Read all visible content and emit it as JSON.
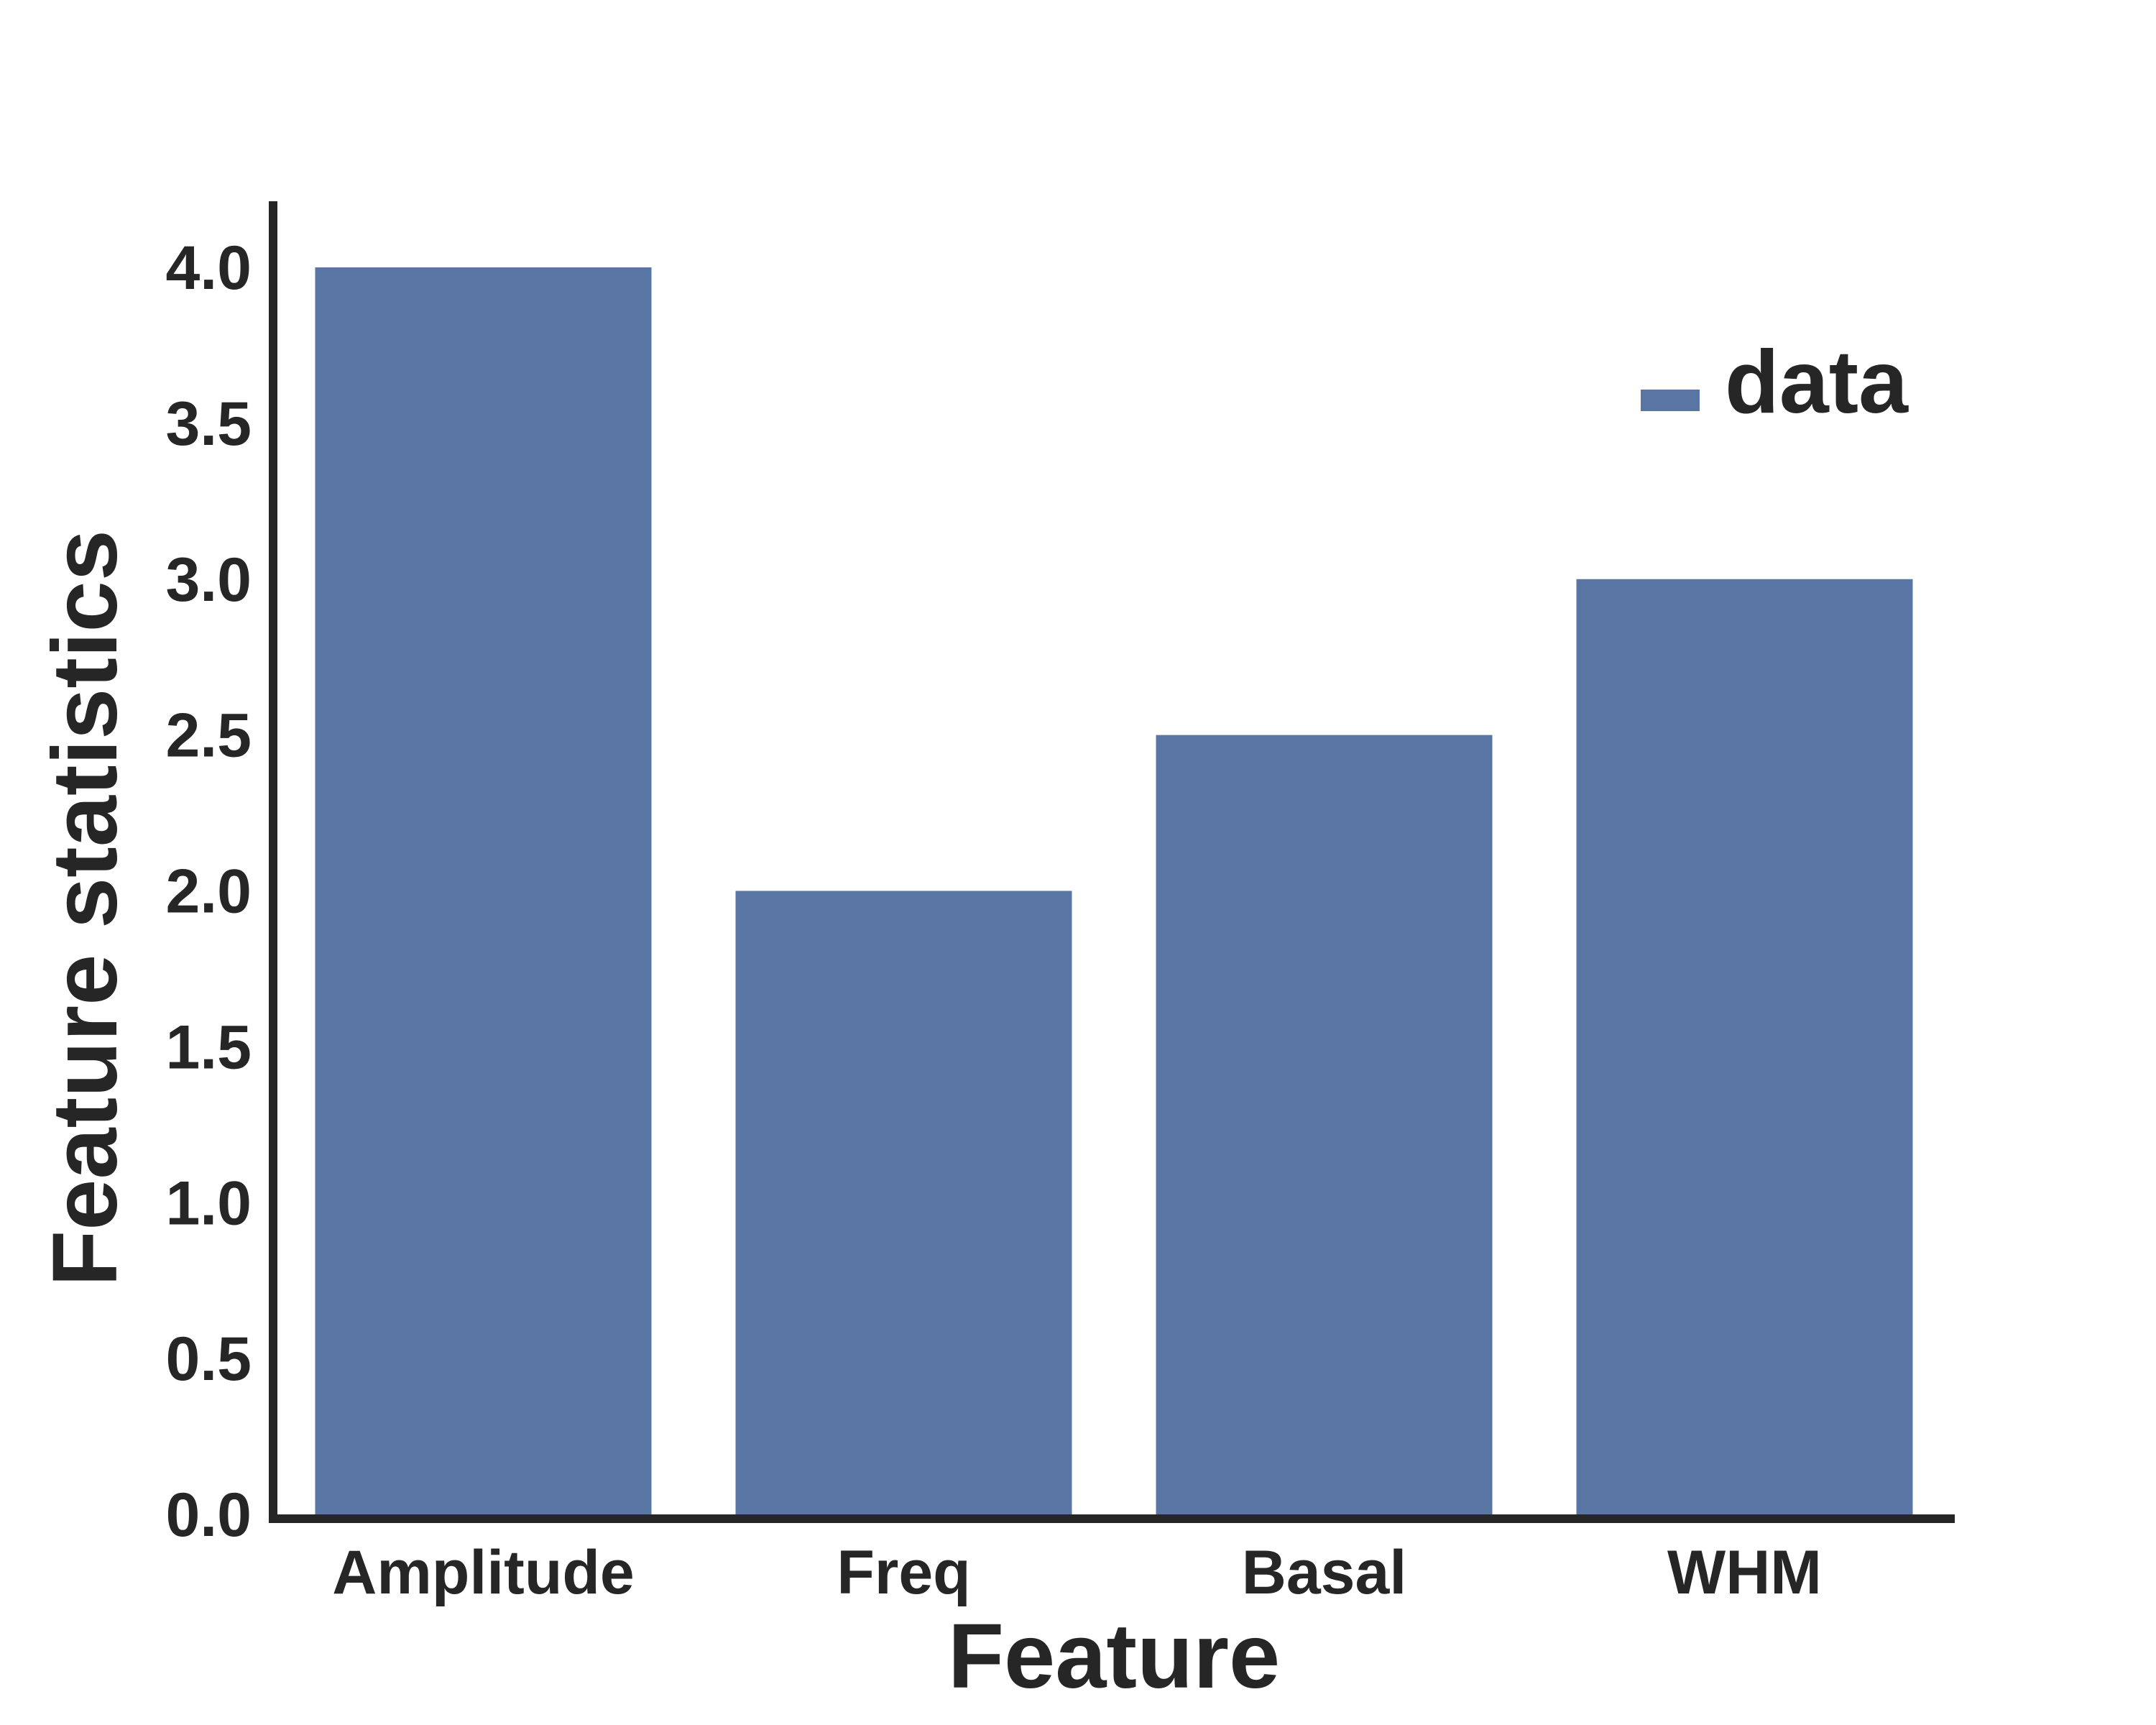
{
  "chart_data": {
    "type": "bar",
    "title": "",
    "xlabel": "Feature",
    "ylabel": "Feature statistics",
    "categories": [
      "Amplitude",
      "Freq",
      "Basal",
      "WHM"
    ],
    "series": [
      {
        "name": "data",
        "values": [
          4.0,
          2.0,
          2.5,
          3.0
        ]
      }
    ],
    "yticks": [
      "0.0",
      "0.5",
      "1.0",
      "1.5",
      "2.0",
      "2.5",
      "3.0",
      "3.5",
      "4.0"
    ],
    "ylim": [
      0,
      4.2
    ],
    "grid": false,
    "legend_position": "top-right"
  },
  "colors": {
    "bar": "#5975a4",
    "axis": "#262626",
    "text": "#262626"
  }
}
